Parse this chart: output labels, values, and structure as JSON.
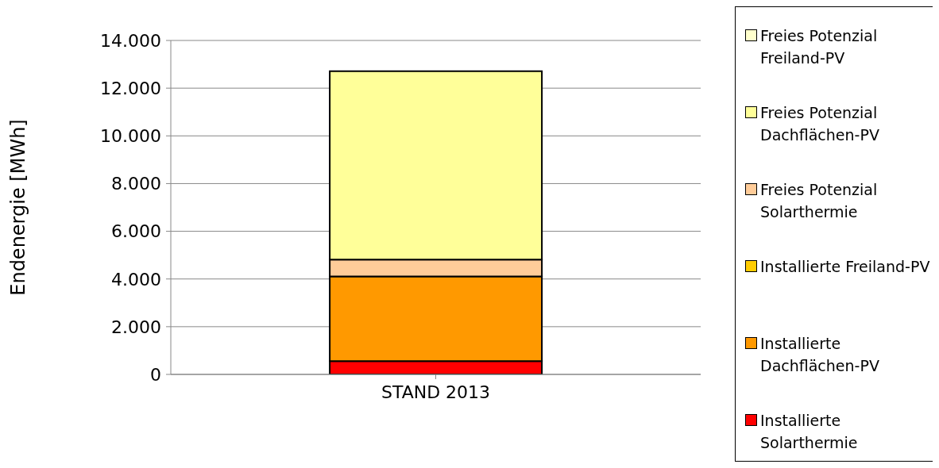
{
  "chart_data": {
    "type": "bar",
    "stacked": true,
    "ylabel": "Endenergie [MWh]",
    "categories": [
      "STAND 2013"
    ],
    "series": [
      {
        "name": "Installierte Solarthermie",
        "color": "#ff0000",
        "values": [
          560
        ]
      },
      {
        "name": "Installierte Dachflächen-PV",
        "color": "#ff9900",
        "values": [
          3550
        ]
      },
      {
        "name": "Installierte Freiland-PV",
        "color": "#ffcc00",
        "values": [
          0
        ]
      },
      {
        "name": "Freies Potenzial Solarthermie",
        "color": "#ffcc99",
        "values": [
          700
        ]
      },
      {
        "name": "Freies Potenzial Dachflächen-PV",
        "color": "#ffff99",
        "values": [
          7900
        ]
      },
      {
        "name": "Freies Potenzial Freiland-PV",
        "color": "#ffffcc",
        "values": [
          0
        ]
      }
    ],
    "ylim": [
      0,
      14000
    ],
    "yticks": [
      {
        "value": 0,
        "label": "0"
      },
      {
        "value": 2000,
        "label": "2.000"
      },
      {
        "value": 4000,
        "label": "4.000"
      },
      {
        "value": 6000,
        "label": "6.000"
      },
      {
        "value": 8000,
        "label": "8.000"
      },
      {
        "value": 10000,
        "label": "10.000"
      },
      {
        "value": 12000,
        "label": "12.000"
      },
      {
        "value": 14000,
        "label": "14.000"
      }
    ],
    "grid": "y",
    "legend": "right"
  }
}
